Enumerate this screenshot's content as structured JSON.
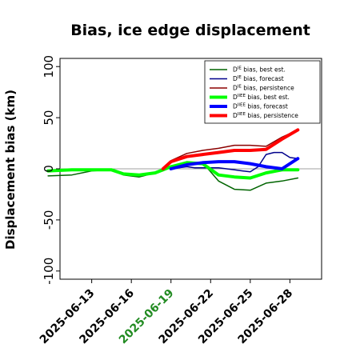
{
  "chart_data": {
    "type": "line",
    "title": "Bias, ice edge displacement",
    "xlabel": "",
    "ylabel": "Displacement bias (km)",
    "ylim": [
      -108,
      108
    ],
    "yticks": [
      -100,
      -50,
      0,
      50,
      100
    ],
    "xlim": [
      0,
      33
    ],
    "x_tick_positions": [
      4,
      9,
      14,
      19,
      24,
      29
    ],
    "x_tick_labels": [
      "2025-06-13",
      "2025-06-16",
      "2025-06-19",
      "2025-06-22",
      "2025-06-25",
      "2025-06-28"
    ],
    "x_tick_colors": [
      "#000000",
      "#000000",
      "#228b22",
      "#000000",
      "#000000",
      "#000000"
    ],
    "reference_line": 0,
    "legend_position": "top-right",
    "series": [
      {
        "name": "D^IE bias, best est.",
        "color": "#006400",
        "width": 1.5,
        "x": [
          -1.5,
          1.5,
          4,
          6.5,
          8,
          10,
          12,
          14,
          16,
          18,
          20,
          22,
          24,
          26,
          28,
          30
        ],
        "y": [
          -7,
          -6,
          -2,
          -1,
          -6,
          -8,
          -4,
          3,
          6,
          6,
          -12,
          -20,
          -21,
          -14,
          -12,
          -9
        ]
      },
      {
        "name": "D^IE bias, forecast",
        "color": "#00008b",
        "width": 1.5,
        "x": [
          14,
          15,
          16,
          17,
          18,
          19,
          20,
          21,
          22,
          23,
          24,
          25,
          26,
          27,
          28,
          29,
          30
        ],
        "y": [
          0,
          1,
          2,
          1,
          1,
          1,
          1,
          0,
          -1,
          -2,
          -3,
          2,
          14,
          16,
          16,
          11,
          10
        ]
      },
      {
        "name": "D^IE bias, persistence",
        "color": "#8b0000",
        "width": 1.5,
        "x": [
          13,
          14,
          16,
          18,
          20,
          22,
          24,
          26,
          28,
          30
        ],
        "y": [
          1,
          8,
          15,
          18,
          20,
          23,
          23,
          22,
          31,
          38
        ]
      },
      {
        "name": "D^IIEE bias, best est.",
        "color": "#00ff00",
        "width": 4,
        "x": [
          -1.5,
          1.5,
          4,
          6.5,
          8,
          10,
          12,
          14,
          16,
          18,
          20,
          22,
          24,
          26,
          28,
          30
        ],
        "y": [
          -2,
          -1,
          -1,
          -1,
          -5,
          -6,
          -4,
          2,
          6,
          5,
          -6,
          -8,
          -9,
          -4,
          -1,
          -1
        ]
      },
      {
        "name": "D^IIEE bias, forecast",
        "color": "#0000ff",
        "width": 4,
        "x": [
          14,
          16,
          18,
          20,
          22,
          24,
          26,
          28,
          30
        ],
        "y": [
          0,
          4,
          6,
          7,
          7,
          5,
          2,
          0,
          10
        ]
      },
      {
        "name": "D^IIEE bias, persistence",
        "color": "#ff0000",
        "width": 4,
        "x": [
          13,
          14,
          16,
          18,
          20,
          22,
          24,
          26,
          28,
          30
        ],
        "y": [
          0,
          7,
          12,
          14,
          16,
          18,
          18,
          19,
          29,
          38
        ]
      }
    ]
  },
  "legend": [
    {
      "base": "D",
      "sup": "IE",
      "text": " bias, best est."
    },
    {
      "base": "D",
      "sup": "IE",
      "text": " bias, forecast"
    },
    {
      "base": "D",
      "sup": "IE",
      "text": " bias, persistence"
    },
    {
      "base": "D",
      "sup": "IIEE",
      "text": " bias, best est."
    },
    {
      "base": "D",
      "sup": "IIEE",
      "text": " bias, forecast"
    },
    {
      "base": "D",
      "sup": "IIEE",
      "text": " bias, persistence"
    }
  ]
}
